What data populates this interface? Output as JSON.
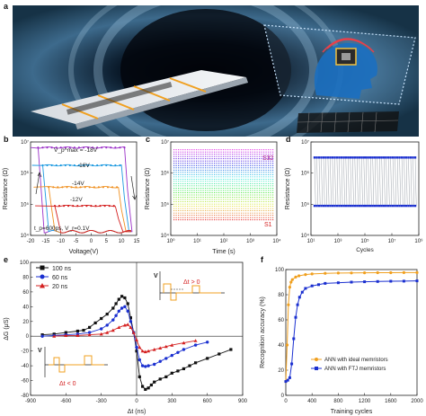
{
  "panel_labels": {
    "a": "a",
    "b": "b",
    "c": "c",
    "d": "d",
    "e": "e",
    "f": "f"
  },
  "colors": {
    "hero_bg": "#0c1824",
    "ribbon": "#e9ecef",
    "accent_orange": "#f0a020",
    "blue_series": "#1a2fd0",
    "grey_lines": "#9aa0a8"
  },
  "chart_data": [
    {
      "id": "b",
      "type": "line",
      "xlabel": "Voltage(V)",
      "ylabel": "Resistance (Ω)",
      "xlim": [
        -20,
        15
      ],
      "ylim_log10": [
        4,
        7
      ],
      "xticks": [
        "-20",
        "-15",
        "-10",
        "-5",
        "0",
        "5",
        "10",
        "15"
      ],
      "yticks": [
        "10⁴",
        "10⁵",
        "10⁶",
        "10⁷"
      ],
      "annotations": {
        "top": "V_p^max = -18V",
        "bottom": "t_p=600ps, V_r=0.1V",
        "series_labels": [
          "-16V",
          "-14V",
          "-12V"
        ]
      },
      "series": [
        {
          "name": "-18V",
          "color": "#9b30c8",
          "high_log": 6.82,
          "low_log": 4.12,
          "switch_neg": -17.5,
          "switch_pos": 11
        },
        {
          "name": "-16V",
          "color": "#1e9ae0",
          "high_log": 6.25,
          "low_log": 4.12,
          "switch_neg": -16,
          "switch_pos": 10
        },
        {
          "name": "-14V",
          "color": "#f09020",
          "high_log": 5.55,
          "low_log": 4.12,
          "switch_neg": -14,
          "switch_pos": 9
        },
        {
          "name": "-12V",
          "color": "#d42020",
          "high_log": 4.95,
          "low_log": 4.12,
          "switch_neg": -12,
          "switch_pos": 8
        }
      ]
    },
    {
      "id": "c",
      "type": "line",
      "xlabel": "Time (s)",
      "ylabel": "Resistance (Ω)",
      "xlim_log10": [
        0,
        4
      ],
      "ylim_log10": [
        4,
        7
      ],
      "xticks": [
        "10⁰",
        "10¹",
        "10²",
        "10³",
        "10⁴"
      ],
      "yticks": [
        "10⁴",
        "10⁵",
        "10⁶",
        "10⁷"
      ],
      "annotations": {
        "top": "S32",
        "bottom": "S1"
      },
      "levels": {
        "count": 32,
        "start_log": 4.5,
        "end_log": 6.75
      }
    },
    {
      "id": "d",
      "type": "line",
      "xlabel": "Cycles",
      "ylabel": "Resistance (Ω)",
      "xlim_log10": [
        0,
        8
      ],
      "ylim_log10": [
        4,
        7
      ],
      "xticks": [
        "10¹",
        "10³",
        "10⁵",
        "10⁷",
        "10⁹"
      ],
      "yticks": [
        "10⁴",
        "10⁵",
        "10⁶",
        "10⁷"
      ],
      "high_log": 6.5,
      "low_log": 4.95
    },
    {
      "id": "e",
      "type": "line",
      "xlabel": "Δt (ns)",
      "ylabel": "ΔG (μS)",
      "xlim": [
        -900,
        900
      ],
      "ylim": [
        -80,
        100
      ],
      "xticks": [
        "-900",
        "-600",
        "-300",
        "0",
        "300",
        "600",
        "900"
      ],
      "yticks": [
        "-80",
        "-60",
        "-40",
        "-20",
        "0",
        "20",
        "40",
        "60",
        "80",
        "100"
      ],
      "legend": [
        "100 ns",
        "60 ns",
        "20 ns"
      ],
      "insets": {
        "top": "Δt > 0",
        "bottom": "Δt < 0",
        "axis": "V"
      },
      "series": [
        {
          "name": "100 ns",
          "color": "#111111",
          "marker": "square",
          "x": [
            -800,
            -700,
            -600,
            -500,
            -450,
            -400,
            -350,
            -300,
            -250,
            -200,
            -175,
            -150,
            -125,
            -100,
            -75,
            -50,
            -25,
            0,
            25,
            50,
            75,
            100,
            125,
            150,
            200,
            250,
            300,
            350,
            400,
            450,
            500,
            600,
            700,
            800
          ],
          "y": [
            2,
            3,
            5,
            7,
            8,
            12,
            18,
            24,
            30,
            38,
            44,
            50,
            54,
            52,
            44,
            25,
            5,
            -20,
            -55,
            -68,
            -72,
            -70,
            -66,
            -62,
            -58,
            -55,
            -50,
            -47,
            -44,
            -40,
            -36,
            -30,
            -24,
            -18
          ]
        },
        {
          "name": "60 ns",
          "color": "#1a2fd0",
          "marker": "circle",
          "x": [
            -800,
            -700,
            -600,
            -500,
            -400,
            -300,
            -250,
            -200,
            -175,
            -150,
            -125,
            -100,
            -75,
            -50,
            -25,
            0,
            25,
            50,
            75,
            100,
            150,
            200,
            250,
            300,
            350,
            400,
            500,
            600
          ],
          "y": [
            0,
            1,
            2,
            3,
            5,
            10,
            15,
            22,
            28,
            34,
            38,
            40,
            34,
            20,
            5,
            -15,
            -32,
            -40,
            -41,
            -40,
            -38,
            -34,
            -30,
            -26,
            -22,
            -18,
            -12,
            -8
          ]
        },
        {
          "name": "20 ns",
          "color": "#d42020",
          "marker": "triangle",
          "x": [
            -700,
            -600,
            -500,
            -400,
            -300,
            -250,
            -200,
            -150,
            -100,
            -75,
            -50,
            -25,
            0,
            25,
            50,
            75,
            100,
            150,
            200,
            250,
            300,
            400,
            500
          ],
          "y": [
            0,
            1,
            1,
            2,
            3,
            5,
            8,
            12,
            15,
            16,
            12,
            5,
            -5,
            -15,
            -20,
            -21,
            -20,
            -18,
            -16,
            -14,
            -12,
            -9,
            -6
          ]
        }
      ]
    },
    {
      "id": "f",
      "type": "line",
      "xlabel": "Training cycles",
      "ylabel": "Recognition accuracy (%)",
      "xlim": [
        0,
        2000
      ],
      "ylim": [
        0,
        100
      ],
      "xticks": [
        "0",
        "400",
        "800",
        "1200",
        "1600",
        "2000"
      ],
      "yticks": [
        "0",
        "20",
        "40",
        "60",
        "80",
        "100"
      ],
      "legend": [
        "ANN with ideal memristors",
        "ANN with FTJ memristors"
      ],
      "series": [
        {
          "name": "ANN with ideal memristors",
          "color": "#f0a020",
          "x": [
            0,
            20,
            40,
            60,
            80,
            100,
            150,
            200,
            300,
            400,
            600,
            800,
            1000,
            1200,
            1400,
            1600,
            1800,
            2000
          ],
          "y": [
            11,
            40,
            72,
            86,
            90,
            92,
            94,
            95,
            96,
            96.5,
            97,
            97.2,
            97.3,
            97.4,
            97.5,
            97.5,
            97.6,
            97.6
          ]
        },
        {
          "name": "ANN with FTJ memristors",
          "color": "#1a2fd0",
          "x": [
            0,
            30,
            60,
            90,
            120,
            150,
            180,
            210,
            250,
            300,
            400,
            500,
            600,
            800,
            1000,
            1200,
            1400,
            1600,
            1800,
            2000
          ],
          "y": [
            11,
            12,
            14,
            25,
            45,
            62,
            72,
            78,
            82,
            85,
            87,
            88,
            89,
            89.5,
            90,
            90.3,
            90.5,
            90.7,
            90.8,
            91
          ]
        }
      ]
    }
  ]
}
